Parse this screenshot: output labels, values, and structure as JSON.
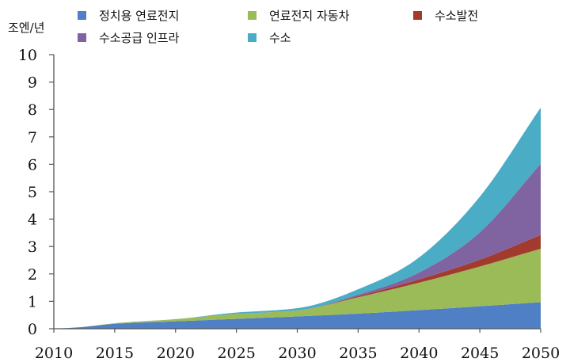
{
  "chart_data": {
    "type": "area",
    "stacked": true,
    "title": "",
    "ylabel": "조엔/년",
    "xlabel": "",
    "xlim": [
      2010,
      2050
    ],
    "ylim": [
      0,
      10
    ],
    "x_ticks": [
      "2010",
      "2015",
      "2020",
      "2025",
      "2030",
      "2035",
      "2040",
      "2045",
      "2050"
    ],
    "y_ticks": [
      "0",
      "1",
      "2",
      "3",
      "4",
      "5",
      "6",
      "7",
      "8",
      "9",
      "10"
    ],
    "grid": false,
    "legend_position": "top",
    "x": [
      2010,
      2012,
      2015,
      2020,
      2025,
      2030,
      2035,
      2040,
      2045,
      2050
    ],
    "series": [
      {
        "name": "정치용 연료전지",
        "color": "#4f7fc4",
        "values": [
          0.0,
          0.05,
          0.18,
          0.27,
          0.36,
          0.45,
          0.55,
          0.68,
          0.82,
          0.97
        ]
      },
      {
        "name": "연료전지 자동차",
        "color": "#9bbb59",
        "values": [
          0.0,
          0.0,
          0.02,
          0.08,
          0.18,
          0.22,
          0.6,
          1.0,
          1.45,
          1.95
        ]
      },
      {
        "name": "수소발전",
        "color": "#a33a2e",
        "values": [
          0.0,
          0.0,
          0.0,
          0.0,
          0.0,
          0.0,
          0.04,
          0.12,
          0.25,
          0.5
        ]
      },
      {
        "name": "수소공급 인프라",
        "color": "#8064a2",
        "values": [
          0.0,
          0.0,
          0.0,
          0.0,
          0.0,
          0.0,
          0.05,
          0.25,
          1.0,
          2.6
        ]
      },
      {
        "name": "수소",
        "color": "#4bacc6",
        "values": [
          0.0,
          0.0,
          0.0,
          0.0,
          0.05,
          0.08,
          0.2,
          0.55,
          1.3,
          2.05
        ]
      }
    ]
  }
}
